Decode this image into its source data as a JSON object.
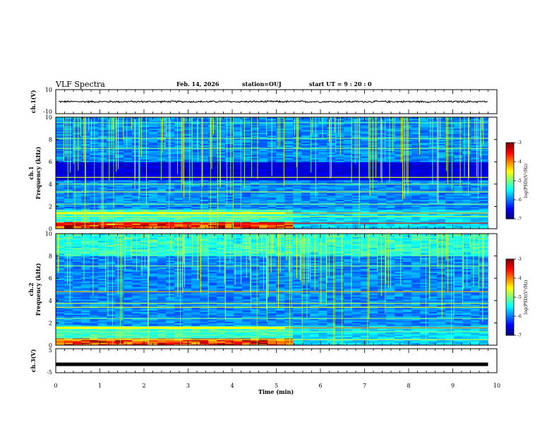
{
  "header": {
    "title": "VLF Spectra",
    "date": "Feb. 14, 2026",
    "station": "station=OUJ",
    "start_ut": "start  UT =   9 : 20 : 0"
  },
  "chart_data": [
    {
      "type": "line",
      "name": "ch1-waveform",
      "ylabel": "ch.1(V)",
      "ylim": [
        -10,
        10
      ],
      "yticks": [
        "10",
        "0",
        "-10"
      ],
      "xlim": [
        0,
        10
      ],
      "amplitude": 0.7,
      "trace_color": "#000000"
    },
    {
      "type": "heatmap",
      "name": "ch1-spectrogram",
      "ylabel_1": "ch.1",
      "ylabel_2": "Frequency (kHz)",
      "ylim": [
        0,
        10
      ],
      "yticks": [
        "0",
        "2",
        "4",
        "6",
        "8",
        "10"
      ],
      "xlim": [
        0,
        10
      ],
      "data_end_min": 9.8,
      "transition_min": 5.2,
      "colorbar": {
        "label": "log(PSD)(V²/Hz)",
        "range": [
          -7,
          -3
        ],
        "ticks": [
          "-3",
          "-4",
          "-5",
          "-6",
          "-7"
        ]
      }
    },
    {
      "type": "heatmap",
      "name": "ch2-spectrogram",
      "ylabel_1": "ch.2",
      "ylabel_2": "Frequency (kHz)",
      "ylim": [
        0,
        10
      ],
      "yticks": [
        "0",
        "2",
        "4",
        "6",
        "8",
        "10"
      ],
      "xlim": [
        0,
        10
      ],
      "data_end_min": 9.8,
      "transition_min": 5.2,
      "colorbar": {
        "label": "log(PSD)(V²/Hz)",
        "range": [
          -7,
          -3
        ],
        "ticks": [
          "-3",
          "-4",
          "-5",
          "-6",
          "-7"
        ]
      }
    },
    {
      "type": "line",
      "name": "ch3-waveform",
      "ylabel": "ch.3(V)",
      "ylim": [
        -5,
        5
      ],
      "yticks": [
        "5",
        "0",
        "-5"
      ],
      "xlim": [
        0,
        10
      ],
      "level": -1.5,
      "trace_color": "#000000"
    }
  ],
  "xaxis": {
    "label": "Time (min)",
    "range": [
      0,
      10
    ],
    "ticks": [
      "0",
      "1",
      "2",
      "3",
      "4",
      "5",
      "6",
      "7",
      "8",
      "9",
      "10"
    ]
  }
}
